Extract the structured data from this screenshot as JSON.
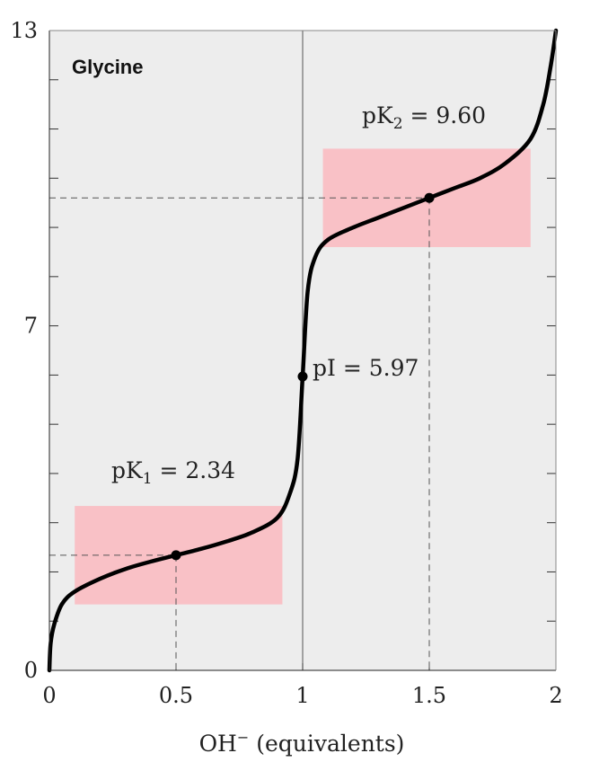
{
  "chart_data": {
    "type": "line",
    "title": "Glycine",
    "xlabel_main": "OH",
    "xlabel_sup": "−",
    "xlabel_rest": " (equivalents)",
    "xlim": [
      0,
      2
    ],
    "ylim": [
      0,
      13
    ],
    "x_ticks": [
      0,
      0.5,
      1,
      1.5,
      2
    ],
    "x_tick_labels": [
      "0",
      "0.5",
      "1",
      "1.5",
      "2"
    ],
    "y_ticks": [
      0,
      7,
      13
    ],
    "y_tick_labels": [
      "0",
      "7",
      "13"
    ],
    "series": [
      {
        "x": [
          0,
          0.005,
          0.02,
          0.05,
          0.1,
          0.2,
          0.3,
          0.4,
          0.5,
          0.6,
          0.7,
          0.8,
          0.9,
          0.95,
          0.98,
          1.0,
          1.02,
          1.05,
          1.1,
          1.2,
          1.3,
          1.4,
          1.5,
          1.6,
          1.7,
          1.8,
          1.9,
          1.95,
          1.98,
          2.0
        ],
        "y": [
          0.0,
          0.55,
          0.95,
          1.35,
          1.6,
          1.86,
          2.06,
          2.21,
          2.34,
          2.47,
          2.62,
          2.8,
          3.1,
          3.6,
          4.3,
          5.97,
          7.7,
          8.4,
          8.75,
          9.0,
          9.2,
          9.4,
          9.6,
          9.8,
          10.0,
          10.3,
          10.8,
          11.5,
          12.3,
          13.0
        ]
      }
    ],
    "buffer_regions": [
      {
        "x": [
          0.1,
          0.92
        ],
        "y": [
          1.34,
          3.34
        ]
      },
      {
        "x": [
          1.08,
          1.9
        ],
        "y": [
          8.6,
          10.6
        ]
      }
    ],
    "points": [
      {
        "x": 0.5,
        "y": 2.34,
        "label_p": "pK",
        "label_sub": "1",
        "label_val": " = 2.34"
      },
      {
        "x": 1.0,
        "y": 5.97,
        "label": "pI = 5.97"
      },
      {
        "x": 1.5,
        "y": 9.6,
        "label_p": "pK",
        "label_sub": "2",
        "label_val": " = 9.60"
      }
    ],
    "colors": {
      "curve": "#000000",
      "buffer": "#f9c1c6",
      "plot_bg": "#ededed"
    }
  }
}
